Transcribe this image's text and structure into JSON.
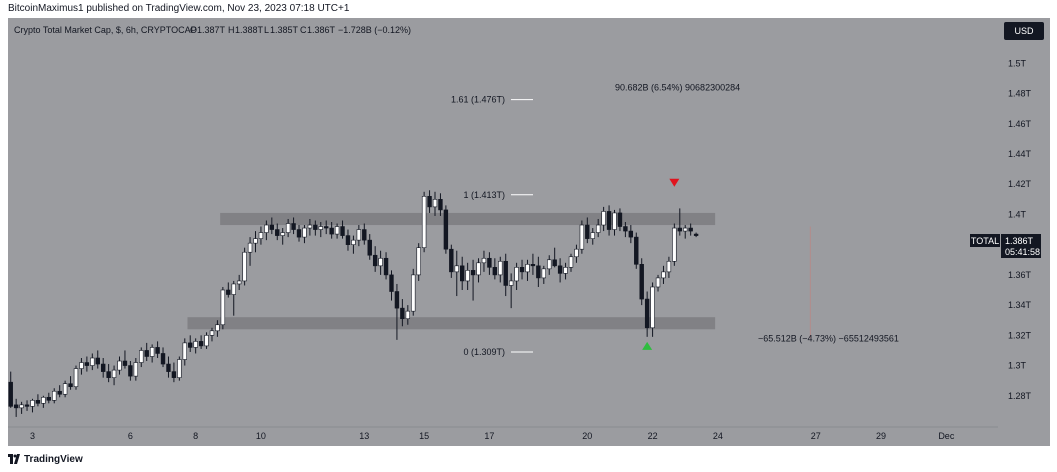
{
  "header": {
    "published": "BitcoinMaximus1 published on TradingView.com, Nov 23, 2023 07:18 UTC+1"
  },
  "footer": {
    "brand": "TradingView"
  },
  "colors": {
    "panel": "#9b9ca0",
    "up": "#ffffff",
    "down": "#131722",
    "zone": "#7c7d80",
    "arrow_down": "#e0141e",
    "arrow_up": "#2ebd3f"
  },
  "chart_data": {
    "type": "candlestick",
    "title": "Crypto Total Market Cap, $, 6h, CRYPTOCAP",
    "ohlc_readout": {
      "o_label": "O",
      "o": "1.387T",
      "h_label": "H",
      "h": "1.388T",
      "l_label": "L",
      "l": "1.385T",
      "c_label": "C",
      "c": "1.386T",
      "change": "−1.728B (−0.12%)"
    },
    "currency_button": "USD",
    "symbol_tag": {
      "label": "TOTAL",
      "price": "1.386T",
      "countdown": "05:41:58"
    },
    "ylim": [
      1.26,
      1.53
    ],
    "yticks": [
      "1.5T",
      "1.48T",
      "1.46T",
      "1.44T",
      "1.42T",
      "1.4T",
      "1.38T",
      "1.36T",
      "1.34T",
      "1.32T",
      "1.3T",
      "1.28T"
    ],
    "ytick_values": [
      1.5,
      1.48,
      1.46,
      1.44,
      1.42,
      1.4,
      1.38,
      1.36,
      1.34,
      1.32,
      1.3,
      1.28
    ],
    "xticks": [
      "3",
      "6",
      "8",
      "10",
      "13",
      "15",
      "17",
      "20",
      "22",
      "24",
      "27",
      "29",
      "Dec"
    ],
    "xtick_index": [
      4,
      22,
      34,
      46,
      65,
      76,
      88,
      106,
      118,
      130,
      148,
      160,
      172
    ],
    "candles": [
      [
        1.289,
        1.296,
        1.272,
        1.273
      ],
      [
        1.274,
        1.278,
        1.266,
        1.272
      ],
      [
        1.272,
        1.276,
        1.268,
        1.274
      ],
      [
        1.274,
        1.277,
        1.27,
        1.273
      ],
      [
        1.273,
        1.278,
        1.269,
        1.277
      ],
      [
        1.277,
        1.281,
        1.273,
        1.275
      ],
      [
        1.275,
        1.28,
        1.272,
        1.279
      ],
      [
        1.279,
        1.282,
        1.275,
        1.277
      ],
      [
        1.277,
        1.285,
        1.275,
        1.283
      ],
      [
        1.283,
        1.287,
        1.279,
        1.281
      ],
      [
        1.281,
        1.29,
        1.279,
        1.288
      ],
      [
        1.288,
        1.293,
        1.284,
        1.286
      ],
      [
        1.286,
        1.3,
        1.284,
        1.298
      ],
      [
        1.298,
        1.305,
        1.294,
        1.302
      ],
      [
        1.302,
        1.306,
        1.296,
        1.3
      ],
      [
        1.3,
        1.308,
        1.297,
        1.305
      ],
      [
        1.305,
        1.31,
        1.298,
        1.301
      ],
      [
        1.301,
        1.305,
        1.292,
        1.296
      ],
      [
        1.296,
        1.301,
        1.289,
        1.292
      ],
      [
        1.292,
        1.3,
        1.287,
        1.297
      ],
      [
        1.297,
        1.306,
        1.294,
        1.303
      ],
      [
        1.303,
        1.31,
        1.298,
        1.3
      ],
      [
        1.3,
        1.303,
        1.29,
        1.293
      ],
      [
        1.293,
        1.305,
        1.29,
        1.302
      ],
      [
        1.302,
        1.312,
        1.299,
        1.31
      ],
      [
        1.31,
        1.315,
        1.303,
        1.306
      ],
      [
        1.306,
        1.314,
        1.302,
        1.312
      ],
      [
        1.312,
        1.316,
        1.305,
        1.308
      ],
      [
        1.308,
        1.312,
        1.299,
        1.301
      ],
      [
        1.301,
        1.306,
        1.292,
        1.296
      ],
      [
        1.296,
        1.302,
        1.289,
        1.292
      ],
      [
        1.292,
        1.306,
        1.29,
        1.304
      ],
      [
        1.304,
        1.318,
        1.3,
        1.315
      ],
      [
        1.315,
        1.32,
        1.309,
        1.312
      ],
      [
        1.312,
        1.318,
        1.308,
        1.316
      ],
      [
        1.316,
        1.32,
        1.311,
        1.313
      ],
      [
        1.313,
        1.322,
        1.311,
        1.32
      ],
      [
        1.32,
        1.325,
        1.316,
        1.323
      ],
      [
        1.323,
        1.33,
        1.319,
        1.327
      ],
      [
        1.327,
        1.352,
        1.324,
        1.35
      ],
      [
        1.35,
        1.355,
        1.345,
        1.347
      ],
      [
        1.347,
        1.356,
        1.333,
        1.354
      ],
      [
        1.354,
        1.36,
        1.35,
        1.356
      ],
      [
        1.356,
        1.378,
        1.353,
        1.375
      ],
      [
        1.375,
        1.385,
        1.366,
        1.381
      ],
      [
        1.381,
        1.389,
        1.375,
        1.384
      ],
      [
        1.384,
        1.392,
        1.38,
        1.388
      ],
      [
        1.388,
        1.396,
        1.383,
        1.393
      ],
      [
        1.393,
        1.398,
        1.387,
        1.39
      ],
      [
        1.39,
        1.394,
        1.383,
        1.386
      ],
      [
        1.386,
        1.391,
        1.38,
        1.388
      ],
      [
        1.388,
        1.397,
        1.385,
        1.394
      ],
      [
        1.394,
        1.398,
        1.387,
        1.39
      ],
      [
        1.39,
        1.393,
        1.382,
        1.385
      ],
      [
        1.385,
        1.393,
        1.381,
        1.391
      ],
      [
        1.391,
        1.397,
        1.386,
        1.393
      ],
      [
        1.393,
        1.396,
        1.386,
        1.39
      ],
      [
        1.39,
        1.395,
        1.385,
        1.392
      ],
      [
        1.392,
        1.396,
        1.387,
        1.391
      ],
      [
        1.391,
        1.395,
        1.384,
        1.387
      ],
      [
        1.387,
        1.394,
        1.384,
        1.392
      ],
      [
        1.392,
        1.396,
        1.384,
        1.386
      ],
      [
        1.386,
        1.39,
        1.376,
        1.38
      ],
      [
        1.38,
        1.386,
        1.374,
        1.383
      ],
      [
        1.383,
        1.393,
        1.379,
        1.39
      ],
      [
        1.39,
        1.394,
        1.38,
        1.383
      ],
      [
        1.383,
        1.387,
        1.37,
        1.373
      ],
      [
        1.373,
        1.379,
        1.362,
        1.366
      ],
      [
        1.366,
        1.376,
        1.36,
        1.371
      ],
      [
        1.371,
        1.375,
        1.357,
        1.36
      ],
      [
        1.36,
        1.363,
        1.343,
        1.349
      ],
      [
        1.349,
        1.354,
        1.317,
        1.338
      ],
      [
        1.338,
        1.344,
        1.326,
        1.331
      ],
      [
        1.331,
        1.34,
        1.327,
        1.336
      ],
      [
        1.336,
        1.364,
        1.333,
        1.36
      ],
      [
        1.36,
        1.381,
        1.356,
        1.378
      ],
      [
        1.378,
        1.415,
        1.375,
        1.412
      ],
      [
        1.412,
        1.416,
        1.401,
        1.405
      ],
      [
        1.405,
        1.415,
        1.399,
        1.41
      ],
      [
        1.41,
        1.414,
        1.399,
        1.403
      ],
      [
        1.403,
        1.406,
        1.374,
        1.377
      ],
      [
        1.377,
        1.38,
        1.358,
        1.362
      ],
      [
        1.362,
        1.376,
        1.346,
        1.366
      ],
      [
        1.366,
        1.372,
        1.35,
        1.356
      ],
      [
        1.356,
        1.368,
        1.35,
        1.363
      ],
      [
        1.363,
        1.37,
        1.343,
        1.36
      ],
      [
        1.36,
        1.371,
        1.355,
        1.368
      ],
      [
        1.368,
        1.376,
        1.362,
        1.371
      ],
      [
        1.371,
        1.375,
        1.36,
        1.365
      ],
      [
        1.365,
        1.371,
        1.357,
        1.36
      ],
      [
        1.36,
        1.372,
        1.355,
        1.369
      ],
      [
        1.369,
        1.374,
        1.346,
        1.353
      ],
      [
        1.353,
        1.361,
        1.338,
        1.356
      ],
      [
        1.356,
        1.368,
        1.35,
        1.365
      ],
      [
        1.365,
        1.37,
        1.357,
        1.362
      ],
      [
        1.362,
        1.37,
        1.356,
        1.367
      ],
      [
        1.367,
        1.374,
        1.36,
        1.366
      ],
      [
        1.366,
        1.372,
        1.352,
        1.358
      ],
      [
        1.358,
        1.366,
        1.354,
        1.364
      ],
      [
        1.364,
        1.373,
        1.36,
        1.37
      ],
      [
        1.37,
        1.378,
        1.365,
        1.366
      ],
      [
        1.366,
        1.371,
        1.355,
        1.361
      ],
      [
        1.361,
        1.368,
        1.357,
        1.365
      ],
      [
        1.365,
        1.374,
        1.362,
        1.372
      ],
      [
        1.372,
        1.38,
        1.368,
        1.377
      ],
      [
        1.377,
        1.396,
        1.374,
        1.393
      ],
      [
        1.393,
        1.398,
        1.381,
        1.384
      ],
      [
        1.384,
        1.391,
        1.38,
        1.388
      ],
      [
        1.388,
        1.397,
        1.385,
        1.393
      ],
      [
        1.393,
        1.405,
        1.389,
        1.402
      ],
      [
        1.402,
        1.406,
        1.386,
        1.39
      ],
      [
        1.39,
        1.403,
        1.386,
        1.401
      ],
      [
        1.401,
        1.404,
        1.389,
        1.392
      ],
      [
        1.392,
        1.395,
        1.385,
        1.389
      ],
      [
        1.389,
        1.393,
        1.381,
        1.385
      ],
      [
        1.385,
        1.388,
        1.364,
        1.367
      ],
      [
        1.367,
        1.371,
        1.34,
        1.344
      ],
      [
        1.344,
        1.349,
        1.319,
        1.325
      ],
      [
        1.325,
        1.355,
        1.319,
        1.352
      ],
      [
        1.352,
        1.36,
        1.349,
        1.358
      ],
      [
        1.358,
        1.366,
        1.354,
        1.362
      ],
      [
        1.362,
        1.372,
        1.358,
        1.369
      ],
      [
        1.369,
        1.394,
        1.366,
        1.391
      ],
      [
        1.391,
        1.404,
        1.386,
        1.389
      ],
      [
        1.389,
        1.393,
        1.384,
        1.391
      ],
      [
        1.391,
        1.394,
        1.386,
        1.389
      ],
      [
        1.387,
        1.388,
        1.385,
        1.386
      ]
    ],
    "x_slots": 182,
    "zones": [
      {
        "from": 39,
        "to": 130,
        "low": 1.393,
        "high": 1.401
      },
      {
        "from": 33,
        "to": 130,
        "low": 1.324,
        "high": 1.332
      }
    ],
    "fib_levels": [
      {
        "label": "1.61 (1.476T)",
        "value": 1.476
      },
      {
        "label": "1 (1.413T)",
        "value": 1.413
      },
      {
        "label": "0 (1.309T)",
        "value": 1.309
      }
    ],
    "measurements": [
      {
        "text": "90.682B (6.54%) 90682300284",
        "value": 1.484
      },
      {
        "text": "−65.512B (−4.73%) −65512493561",
        "value": 1.318
      }
    ],
    "markers": [
      {
        "type": "down",
        "index": 122,
        "value": 1.421
      },
      {
        "type": "up",
        "index": 117,
        "value": 1.313
      }
    ],
    "vertical_line_index": 147
  }
}
